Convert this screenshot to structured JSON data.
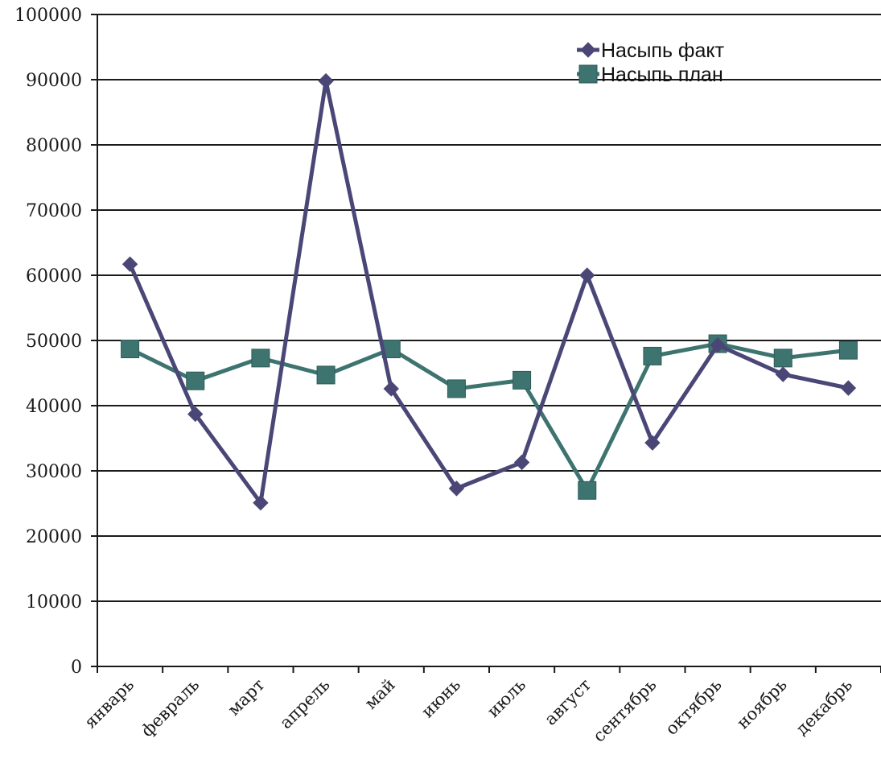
{
  "chart_data": {
    "type": "line",
    "title": "",
    "xlabel": "",
    "ylabel": "",
    "ylim": [
      0,
      100000
    ],
    "yticks": [
      0,
      10000,
      20000,
      30000,
      40000,
      50000,
      60000,
      70000,
      80000,
      90000,
      100000
    ],
    "grid": true,
    "legend_position": "top-right",
    "categories": [
      "январь",
      "февраль",
      "март",
      "апрель",
      "май",
      "июнь",
      "июль",
      "август",
      "сентябрь",
      "октябрь",
      "ноябрь",
      "декабрь"
    ],
    "series": [
      {
        "name": "Насыпь факт",
        "color": "#4a4777",
        "marker": "diamond",
        "values": [
          61700,
          38700,
          25100,
          89800,
          42600,
          27300,
          31300,
          60000,
          34300,
          49300,
          44800,
          42700
        ]
      },
      {
        "name": "Насыпь план",
        "color": "#3e7470",
        "marker": "square",
        "values": [
          48700,
          43800,
          47300,
          44700,
          48700,
          42600,
          43900,
          27000,
          47600,
          49500,
          47300,
          48500
        ]
      }
    ]
  }
}
